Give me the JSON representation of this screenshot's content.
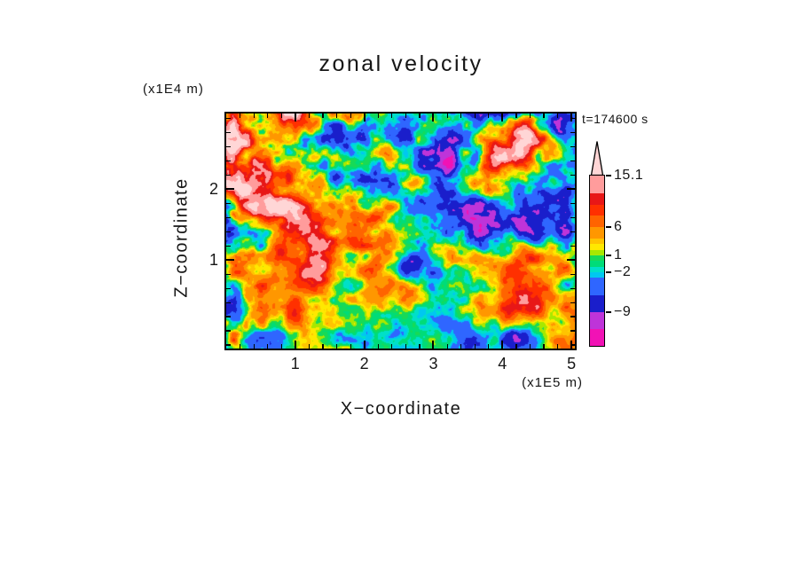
{
  "chart_data": {
    "type": "heatmap",
    "title": "zonal velocity",
    "xlabel": "X−coordinate",
    "ylabel": "Z−coordinate",
    "x_unit": "(x1E5 m)",
    "z_unit": "(x1E4 m)",
    "time_label": "t=174600 s",
    "x_range": [
      0,
      5.05
    ],
    "z_range": [
      -0.25,
      3.07
    ],
    "x_ticks": [
      1,
      2,
      3,
      4,
      5
    ],
    "z_ticks": [
      1,
      2
    ],
    "grid": false,
    "legend_position": "right-colorbar",
    "contour_levels": [
      -15,
      -12,
      -9,
      -6,
      -3,
      -2,
      -1,
      0,
      1,
      2,
      3,
      4,
      6,
      8,
      10,
      12,
      15.1
    ],
    "palette": [
      "#F112B5",
      "#BE34D9",
      "#1A1ECB",
      "#2F66FF",
      "#00C8F0",
      "#00E0C8",
      "#00DC78",
      "#17DA57",
      "#A8E800",
      "#FFE800",
      "#FFC400",
      "#FF9700",
      "#FF6400",
      "#FF3000",
      "#E81717",
      "#FF9C9C"
    ],
    "over_color": "#FFD6D6",
    "colorbar_labels": [
      {
        "value": 15.1,
        "text": "15.1"
      },
      {
        "value": 6,
        "text": "6"
      },
      {
        "value": 1,
        "text": "1"
      },
      {
        "value": -2,
        "text": "−2"
      },
      {
        "value": -9,
        "text": "−9"
      }
    ],
    "procedural_field": {
      "amp1": 36,
      "f1x": 0.92,
      "f1z": 1.12,
      "ox1": 7.31,
      "oz1": 3.17,
      "amp2": 26,
      "f2x": 2.35,
      "f2z": 2.7,
      "ox2": 1.73,
      "oz2": 9.42,
      "bias": 1.6,
      "wave_amp": 1.8,
      "wave_freq": 2.2,
      "wave_phase": -0.8,
      "base_gain": 0.78,
      "top_gain": 0.14,
      "edge_gain": 0.5,
      "edge_width": 0.16
    }
  }
}
